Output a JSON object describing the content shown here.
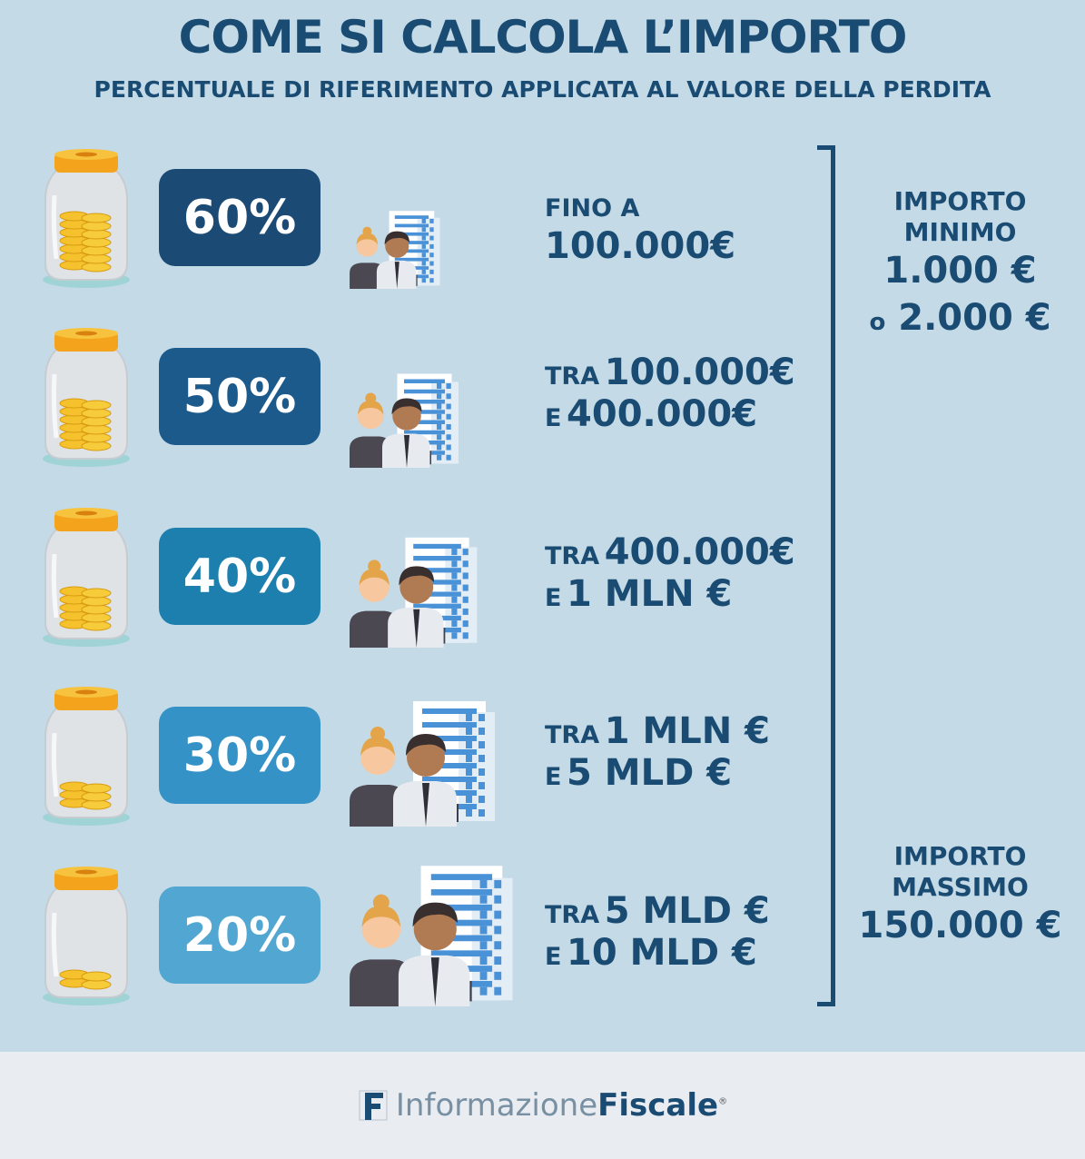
{
  "header": {
    "title": "COME SI CALCOLA L’IMPORTO",
    "subtitle": "PERCENTUALE DI RIFERIMENTO APPLICATA AL VALORE DELLA PERDITA"
  },
  "rows": [
    {
      "percent": "60%",
      "color": "#1b4a75",
      "l1_small": "FINO A",
      "l1_big": "",
      "l2_small": "",
      "l2_big": "100.000€",
      "coin_fill": 0.6
    },
    {
      "percent": "50%",
      "color": "#1c5a8c",
      "l1_small": "TRA",
      "l1_big": "100.000€",
      "l2_small": "E",
      "l2_big": "400.000€",
      "coin_fill": 0.5
    },
    {
      "percent": "40%",
      "color": "#1d7fae",
      "l1_small": "TRA",
      "l1_big": "400.000€",
      "l2_small": "E",
      "l2_big": "1 MLN €",
      "coin_fill": 0.4
    },
    {
      "percent": "30%",
      "color": "#3592c6",
      "l1_small": "TRA",
      "l1_big": "1 MLN €",
      "l2_small": "E",
      "l2_big": "5 MLD €",
      "coin_fill": 0.3
    },
    {
      "percent": "20%",
      "color": "#52a6d2",
      "l1_small": "TRA",
      "l1_big": "5 MLD €",
      "l2_small": "E",
      "l2_big": "10 MLD €",
      "coin_fill": 0.2
    }
  ],
  "minimum": {
    "label_1": "IMPORTO",
    "label_2": "MINIMO",
    "value_1": "1.000 €",
    "or": "o",
    "value_2": "2.000 €"
  },
  "maximum": {
    "label_1": "IMPORTO",
    "label_2": "MASSIMO",
    "value": "150.000 €"
  },
  "footer": {
    "brand_light": "Informazione",
    "brand_bold": "Fiscale",
    "registered": "®",
    "logo_icon": "logo-f-icon"
  }
}
